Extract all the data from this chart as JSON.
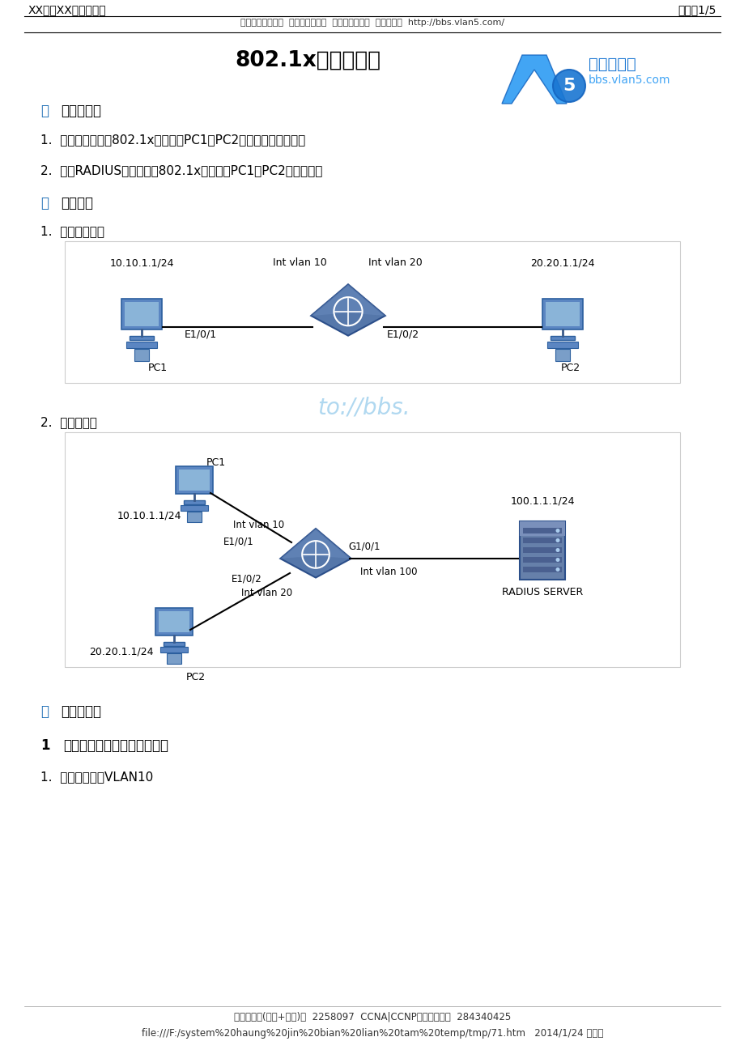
{
  "page_title_left": "XX产品XX功能的配置",
  "page_title_right": "页码，1/5",
  "page_subtitle": "版权归原作者所有  本资料只供试读  更多资源请访问  攻城狮论坛  http://bbs.vlan5.com/",
  "main_title": "802.1x认证的配置",
  "section1_label": "一",
  "section1_text": "组网需求：",
  "item1": "1.  在交换机上启动802.1x认证，对PC1、PC2进行本地认证上网；",
  "item2": "2.  远程RADIUS服务器开启802.1x认证，对PC1、PC2认证上网。",
  "section2_label": "二",
  "section2_text": "组网图：",
  "diag1_label": "1.  进行本地认证",
  "diag2_label": "2.  服务器认证",
  "section3_label": "三",
  "section3_text": "配置步骤：",
  "bold1_num": "1",
  "bold1_text": "作本地认证时交换机相关配置",
  "step1_text": "1.  创建（进入）VLAN10",
  "footer_line1": "攻城狮论坛(技术+生活)群  2258097  CCNA|CCNP免费答疑题库  284340425",
  "footer_line2": "file:///F:/system%20haung%20jin%20bian%20lian%20tam%20temp/tmp/71.htm   2014/1/24 星期五",
  "bg_color": "#ffffff",
  "text_color": "#000000",
  "blue_color": "#1e6eb5",
  "watermark_text": "to://bbs.",
  "diag1_pc1_ip": "10.10.1.1/24",
  "diag1_pc2_ip": "20.20.1.1/24",
  "diag1_int_vlan10": "Int vlan 10",
  "diag1_int_vlan20": "Int vlan 20",
  "diag1_e1_0_1": "E1/0/1",
  "diag1_e1_0_2": "E1/0/2",
  "diag1_pc1": "PC1",
  "diag1_pc2": "PC2",
  "diag2_pc1": "PC1",
  "diag2_pc2": "PC2",
  "diag2_pc1_ip": "10.10.1.1/24",
  "diag2_pc2_ip": "20.20.1.1/24",
  "diag2_server_ip": "100.1.1.1/24",
  "diag2_int_vlan10": "Int vlan 10",
  "diag2_int_vlan20": "Int vlan 20",
  "diag2_int_vlan100": "Int vlan 100",
  "diag2_e1_0_1": "E1/0/1",
  "diag2_e1_0_2": "E1/0/2",
  "diag2_g1_0_1": "G1/0/1",
  "diag2_server_label": "RADIUS SERVER"
}
